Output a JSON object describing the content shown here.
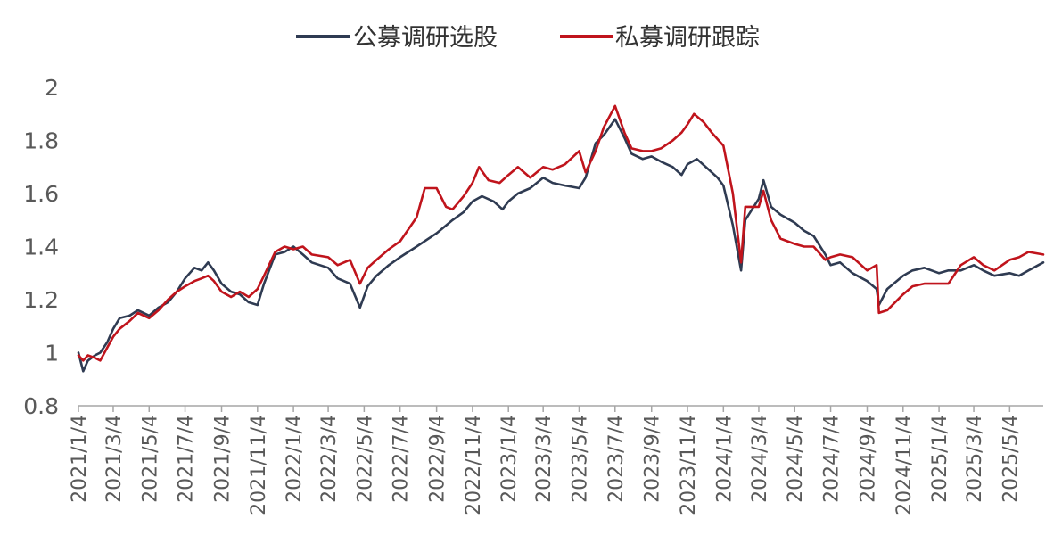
{
  "chart_data": {
    "type": "line",
    "title": "",
    "xlabel": "",
    "ylabel": "",
    "ylim": [
      0.8,
      2
    ],
    "yticks": [
      "0.8",
      "1",
      "1.2",
      "1.4",
      "1.6",
      "1.8",
      "2"
    ],
    "x_range": [
      "2021-01-04",
      "2025-06-30"
    ],
    "xticks": [
      {
        "label": "2021/1/4",
        "date": "2021-01-04"
      },
      {
        "label": "2021/3/4",
        "date": "2021-03-04"
      },
      {
        "label": "2021/5/4",
        "date": "2021-05-04"
      },
      {
        "label": "2021/7/4",
        "date": "2021-07-04"
      },
      {
        "label": "2021/9/4",
        "date": "2021-09-04"
      },
      {
        "label": "2021/11/4",
        "date": "2021-11-04"
      },
      {
        "label": "2022/1/4",
        "date": "2022-01-04"
      },
      {
        "label": "2022/3/4",
        "date": "2022-03-04"
      },
      {
        "label": "2022/5/4",
        "date": "2022-05-04"
      },
      {
        "label": "2022/7/4",
        "date": "2022-07-04"
      },
      {
        "label": "2022/9/4",
        "date": "2022-09-04"
      },
      {
        "label": "2022/11/4",
        "date": "2022-11-04"
      },
      {
        "label": "2023/1/4",
        "date": "2023-01-04"
      },
      {
        "label": "2023/3/4",
        "date": "2023-03-04"
      },
      {
        "label": "2023/5/4",
        "date": "2023-05-04"
      },
      {
        "label": "2023/7/4",
        "date": "2023-07-04"
      },
      {
        "label": "2023/9/4",
        "date": "2023-09-04"
      },
      {
        "label": "2023/11/4",
        "date": "2023-11-04"
      },
      {
        "label": "2024/1/4",
        "date": "2024-01-04"
      },
      {
        "label": "2024/3/4",
        "date": "2024-03-04"
      },
      {
        "label": "2024/5/4",
        "date": "2024-05-04"
      },
      {
        "label": "2024/7/4",
        "date": "2024-07-04"
      },
      {
        "label": "2024/9/4",
        "date": "2024-09-04"
      },
      {
        "label": "2024/11/4",
        "date": "2024-11-04"
      },
      {
        "label": "2025/1/4",
        "date": "2025-01-04"
      },
      {
        "label": "2025/3/4",
        "date": "2025-03-04"
      },
      {
        "label": "2025/5/4",
        "date": "2025-05-04"
      }
    ],
    "grid": false,
    "legend_position": "top-center",
    "series": [
      {
        "name": "公募调研选股",
        "color": "#2f3b52",
        "points": [
          [
            "2021-01-04",
            1.0
          ],
          [
            "2021-01-12",
            0.93
          ],
          [
            "2021-01-20",
            0.97
          ],
          [
            "2021-02-01",
            0.99
          ],
          [
            "2021-02-10",
            1.0
          ],
          [
            "2021-02-22",
            1.04
          ],
          [
            "2021-03-04",
            1.09
          ],
          [
            "2021-03-15",
            1.13
          ],
          [
            "2021-04-01",
            1.14
          ],
          [
            "2021-04-15",
            1.16
          ],
          [
            "2021-05-04",
            1.14
          ],
          [
            "2021-05-20",
            1.17
          ],
          [
            "2021-06-05",
            1.19
          ],
          [
            "2021-06-20",
            1.23
          ],
          [
            "2021-07-04",
            1.28
          ],
          [
            "2021-07-20",
            1.32
          ],
          [
            "2021-08-01",
            1.31
          ],
          [
            "2021-08-12",
            1.34
          ],
          [
            "2021-08-22",
            1.31
          ],
          [
            "2021-09-04",
            1.26
          ],
          [
            "2021-09-20",
            1.23
          ],
          [
            "2021-10-05",
            1.22
          ],
          [
            "2021-10-20",
            1.19
          ],
          [
            "2021-11-04",
            1.18
          ],
          [
            "2021-11-15",
            1.26
          ],
          [
            "2021-12-04",
            1.37
          ],
          [
            "2021-12-20",
            1.38
          ],
          [
            "2022-01-04",
            1.4
          ],
          [
            "2022-01-20",
            1.37
          ],
          [
            "2022-02-04",
            1.34
          ],
          [
            "2022-03-04",
            1.32
          ],
          [
            "2022-03-20",
            1.28
          ],
          [
            "2022-04-10",
            1.26
          ],
          [
            "2022-04-27",
            1.17
          ],
          [
            "2022-05-10",
            1.25
          ],
          [
            "2022-05-25",
            1.29
          ],
          [
            "2022-06-15",
            1.33
          ],
          [
            "2022-07-04",
            1.36
          ],
          [
            "2022-08-01",
            1.4
          ],
          [
            "2022-09-04",
            1.45
          ],
          [
            "2022-10-01",
            1.5
          ],
          [
            "2022-10-20",
            1.53
          ],
          [
            "2022-11-04",
            1.57
          ],
          [
            "2022-11-20",
            1.59
          ],
          [
            "2022-12-10",
            1.57
          ],
          [
            "2022-12-25",
            1.54
          ],
          [
            "2023-01-04",
            1.57
          ],
          [
            "2023-01-20",
            1.6
          ],
          [
            "2023-02-10",
            1.62
          ],
          [
            "2023-03-04",
            1.66
          ],
          [
            "2023-03-20",
            1.64
          ],
          [
            "2023-04-10",
            1.63
          ],
          [
            "2023-05-04",
            1.62
          ],
          [
            "2023-05-15",
            1.66
          ],
          [
            "2023-06-01",
            1.79
          ],
          [
            "2023-06-15",
            1.82
          ],
          [
            "2023-07-04",
            1.88
          ],
          [
            "2023-07-20",
            1.81
          ],
          [
            "2023-08-01",
            1.75
          ],
          [
            "2023-08-20",
            1.73
          ],
          [
            "2023-09-04",
            1.74
          ],
          [
            "2023-09-20",
            1.72
          ],
          [
            "2023-10-10",
            1.7
          ],
          [
            "2023-10-25",
            1.67
          ],
          [
            "2023-11-04",
            1.71
          ],
          [
            "2023-11-20",
            1.73
          ],
          [
            "2023-12-10",
            1.69
          ],
          [
            "2023-12-25",
            1.66
          ],
          [
            "2024-01-04",
            1.63
          ],
          [
            "2024-01-20",
            1.48
          ],
          [
            "2024-02-03",
            1.31
          ],
          [
            "2024-02-10",
            1.5
          ],
          [
            "2024-03-04",
            1.58
          ],
          [
            "2024-03-12",
            1.65
          ],
          [
            "2024-03-25",
            1.55
          ],
          [
            "2024-04-10",
            1.52
          ],
          [
            "2024-05-04",
            1.49
          ],
          [
            "2024-05-20",
            1.46
          ],
          [
            "2024-06-05",
            1.44
          ],
          [
            "2024-06-25",
            1.37
          ],
          [
            "2024-07-04",
            1.33
          ],
          [
            "2024-07-20",
            1.34
          ],
          [
            "2024-08-10",
            1.3
          ],
          [
            "2024-09-04",
            1.27
          ],
          [
            "2024-09-20",
            1.24
          ],
          [
            "2024-09-24",
            1.18
          ],
          [
            "2024-10-08",
            1.24
          ],
          [
            "2024-11-04",
            1.29
          ],
          [
            "2024-11-20",
            1.31
          ],
          [
            "2024-12-10",
            1.32
          ],
          [
            "2025-01-04",
            1.3
          ],
          [
            "2025-01-20",
            1.31
          ],
          [
            "2025-02-10",
            1.31
          ],
          [
            "2025-03-04",
            1.33
          ],
          [
            "2025-03-20",
            1.31
          ],
          [
            "2025-04-08",
            1.29
          ],
          [
            "2025-05-04",
            1.3
          ],
          [
            "2025-05-20",
            1.29
          ],
          [
            "2025-06-05",
            1.31
          ],
          [
            "2025-06-30",
            1.34
          ]
        ]
      },
      {
        "name": "私募调研跟踪",
        "color": "#c0141c",
        "points": [
          [
            "2021-01-04",
            0.99
          ],
          [
            "2021-01-12",
            0.97
          ],
          [
            "2021-01-20",
            0.99
          ],
          [
            "2021-02-01",
            0.98
          ],
          [
            "2021-02-10",
            0.97
          ],
          [
            "2021-02-22",
            1.02
          ],
          [
            "2021-03-04",
            1.06
          ],
          [
            "2021-03-15",
            1.09
          ],
          [
            "2021-04-01",
            1.12
          ],
          [
            "2021-04-15",
            1.15
          ],
          [
            "2021-05-04",
            1.13
          ],
          [
            "2021-05-20",
            1.16
          ],
          [
            "2021-06-05",
            1.2
          ],
          [
            "2021-06-20",
            1.23
          ],
          [
            "2021-07-04",
            1.25
          ],
          [
            "2021-07-20",
            1.27
          ],
          [
            "2021-08-01",
            1.28
          ],
          [
            "2021-08-12",
            1.29
          ],
          [
            "2021-08-22",
            1.27
          ],
          [
            "2021-09-04",
            1.23
          ],
          [
            "2021-09-20",
            1.21
          ],
          [
            "2021-10-05",
            1.23
          ],
          [
            "2021-10-20",
            1.21
          ],
          [
            "2021-11-04",
            1.24
          ],
          [
            "2021-11-15",
            1.29
          ],
          [
            "2021-12-04",
            1.38
          ],
          [
            "2021-12-20",
            1.4
          ],
          [
            "2022-01-04",
            1.39
          ],
          [
            "2022-01-20",
            1.4
          ],
          [
            "2022-02-04",
            1.37
          ],
          [
            "2022-03-04",
            1.36
          ],
          [
            "2022-03-20",
            1.33
          ],
          [
            "2022-04-10",
            1.35
          ],
          [
            "2022-04-27",
            1.26
          ],
          [
            "2022-05-10",
            1.32
          ],
          [
            "2022-05-25",
            1.35
          ],
          [
            "2022-06-15",
            1.39
          ],
          [
            "2022-07-04",
            1.42
          ],
          [
            "2022-08-01",
            1.51
          ],
          [
            "2022-08-15",
            1.62
          ],
          [
            "2022-09-04",
            1.62
          ],
          [
            "2022-09-20",
            1.55
          ],
          [
            "2022-10-01",
            1.54
          ],
          [
            "2022-10-20",
            1.59
          ],
          [
            "2022-11-04",
            1.64
          ],
          [
            "2022-11-15",
            1.7
          ],
          [
            "2022-12-01",
            1.65
          ],
          [
            "2022-12-20",
            1.64
          ],
          [
            "2023-01-04",
            1.67
          ],
          [
            "2023-01-20",
            1.7
          ],
          [
            "2023-02-10",
            1.66
          ],
          [
            "2023-03-04",
            1.7
          ],
          [
            "2023-03-20",
            1.69
          ],
          [
            "2023-04-10",
            1.71
          ],
          [
            "2023-05-04",
            1.76
          ],
          [
            "2023-05-15",
            1.68
          ],
          [
            "2023-06-01",
            1.76
          ],
          [
            "2023-06-15",
            1.85
          ],
          [
            "2023-07-04",
            1.93
          ],
          [
            "2023-07-20",
            1.83
          ],
          [
            "2023-08-01",
            1.77
          ],
          [
            "2023-08-20",
            1.76
          ],
          [
            "2023-09-04",
            1.76
          ],
          [
            "2023-09-20",
            1.77
          ],
          [
            "2023-10-10",
            1.8
          ],
          [
            "2023-10-25",
            1.83
          ],
          [
            "2023-11-04",
            1.86
          ],
          [
            "2023-11-15",
            1.9
          ],
          [
            "2023-12-01",
            1.87
          ],
          [
            "2023-12-15",
            1.83
          ],
          [
            "2024-01-04",
            1.78
          ],
          [
            "2024-01-20",
            1.6
          ],
          [
            "2024-02-03",
            1.34
          ],
          [
            "2024-02-10",
            1.55
          ],
          [
            "2024-03-04",
            1.55
          ],
          [
            "2024-03-12",
            1.61
          ],
          [
            "2024-03-25",
            1.5
          ],
          [
            "2024-04-10",
            1.43
          ],
          [
            "2024-05-04",
            1.41
          ],
          [
            "2024-05-20",
            1.4
          ],
          [
            "2024-06-05",
            1.4
          ],
          [
            "2024-06-25",
            1.35
          ],
          [
            "2024-07-04",
            1.36
          ],
          [
            "2024-07-20",
            1.37
          ],
          [
            "2024-08-10",
            1.36
          ],
          [
            "2024-09-04",
            1.31
          ],
          [
            "2024-09-20",
            1.33
          ],
          [
            "2024-09-24",
            1.15
          ],
          [
            "2024-10-08",
            1.16
          ],
          [
            "2024-11-04",
            1.22
          ],
          [
            "2024-11-20",
            1.25
          ],
          [
            "2024-12-10",
            1.26
          ],
          [
            "2025-01-04",
            1.26
          ],
          [
            "2025-01-20",
            1.26
          ],
          [
            "2025-02-10",
            1.33
          ],
          [
            "2025-03-04",
            1.36
          ],
          [
            "2025-03-20",
            1.33
          ],
          [
            "2025-04-08",
            1.31
          ],
          [
            "2025-05-04",
            1.35
          ],
          [
            "2025-05-20",
            1.36
          ],
          [
            "2025-06-05",
            1.38
          ],
          [
            "2025-06-30",
            1.37
          ]
        ]
      }
    ]
  }
}
